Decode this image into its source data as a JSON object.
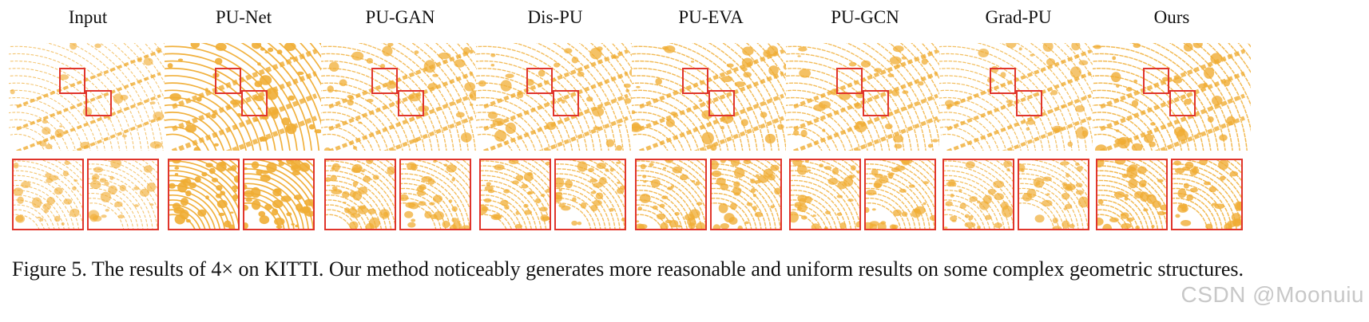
{
  "figure": {
    "methods": [
      {
        "label": "Input",
        "density": 0.45
      },
      {
        "label": "PU-Net",
        "density": 1.0
      },
      {
        "label": "PU-GAN",
        "density": 0.7
      },
      {
        "label": "Dis-PU",
        "density": 0.7
      },
      {
        "label": "PU-EVA",
        "density": 0.75
      },
      {
        "label": "PU-GCN",
        "density": 0.72
      },
      {
        "label": "Grad-PU",
        "density": 0.6
      },
      {
        "label": "Ours",
        "density": 0.8
      }
    ],
    "colors": {
      "points": "#f0ad34",
      "highlight_box": "#e0352c"
    }
  },
  "caption": {
    "text": "Figure 5. The results of 4× on KITTI. Our method noticeably generates more reasonable and uniform results on some complex geometric structures."
  },
  "watermark": {
    "text": "CSDN @Moonuiu"
  }
}
